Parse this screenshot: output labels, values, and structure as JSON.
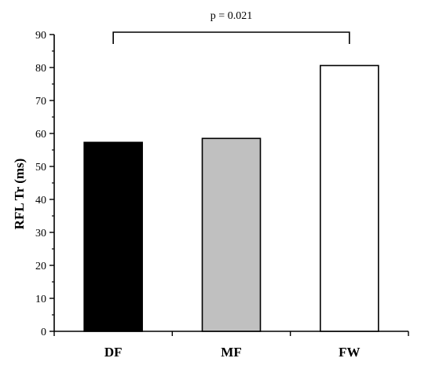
{
  "chart_data": {
    "type": "bar",
    "categories": [
      "DF",
      "MF",
      "FW"
    ],
    "values": [
      57.3,
      58.5,
      80.6
    ],
    "colors": [
      "#000000",
      "#c0c0c0",
      "#ffffff"
    ],
    "title": "",
    "xlabel": "",
    "ylabel": "RFL Tr (ms)",
    "ylim": [
      0,
      90
    ],
    "yticks": [
      "0",
      "10",
      "20",
      "30",
      "40",
      "50",
      "60",
      "70",
      "80",
      "90"
    ],
    "grid": false,
    "legend": "none",
    "annotation": {
      "text": "p = 0.021",
      "from": "DF",
      "to": "FW"
    }
  }
}
